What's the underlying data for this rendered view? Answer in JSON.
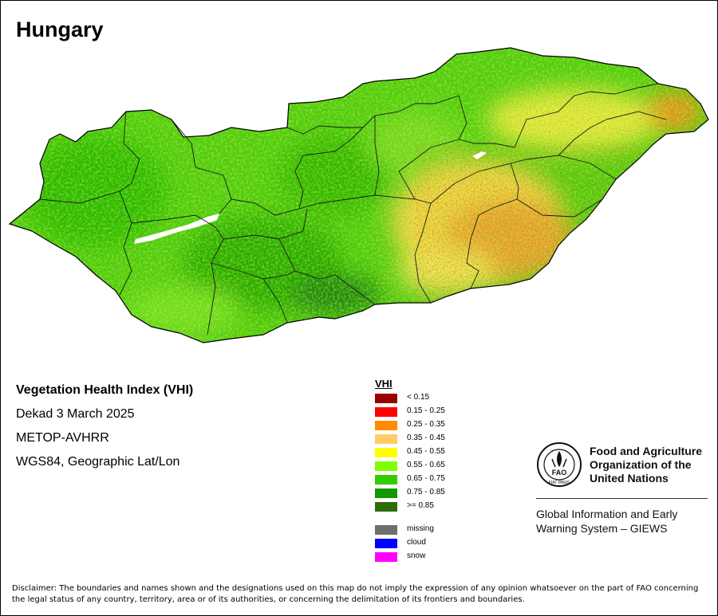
{
  "map": {
    "title": "Hungary",
    "colors": {
      "lake": "#ffffff",
      "border": "#000000",
      "admin_border": "#1a1a1a"
    }
  },
  "info": {
    "index_name": "Vegetation Health Index (VHI)",
    "period": "Dekad 3 March 2025",
    "sensor": "METOP-AVHRR",
    "projection": "WGS84, Geographic Lat/Lon"
  },
  "legend": {
    "title": "VHI",
    "classes": [
      {
        "label": "< 0.15",
        "color": "#990000"
      },
      {
        "label": "0.15 - 0.25",
        "color": "#ff0000"
      },
      {
        "label": "0.25 - 0.35",
        "color": "#ff8c00"
      },
      {
        "label": "0.35 - 0.45",
        "color": "#ffcc66"
      },
      {
        "label": "0.45 - 0.55",
        "color": "#ffff00"
      },
      {
        "label": "0.55 - 0.65",
        "color": "#80ff00"
      },
      {
        "label": "0.65 - 0.75",
        "color": "#33cc00"
      },
      {
        "label": "0.75 - 0.85",
        "color": "#119900"
      },
      {
        "label": ">= 0.85",
        "color": "#2d6e0a"
      }
    ],
    "special": [
      {
        "label": "missing",
        "color": "#6e6e6e"
      },
      {
        "label": "cloud",
        "color": "#0000ff"
      },
      {
        "label": "snow",
        "color": "#ff00ff"
      }
    ]
  },
  "branding": {
    "logo_icon": "fao-emblem-icon",
    "logo_letters": "FAO",
    "logo_motto": "FIAT PANIS",
    "org_name_lines": [
      "Food and Agriculture",
      "Organization of the",
      "United Nations"
    ],
    "system_lines": [
      "Global Information and Early",
      "Warning System – GIEWS"
    ]
  },
  "disclaimer": {
    "text": "Disclaimer: The boundaries and names shown and the designations used on this map do not imply the expression of any opinion whatsoever on the part of FAO concerning the legal status of any country, territory, area or of its authorities, or concerning the delimitation of its frontiers and boundaries."
  }
}
